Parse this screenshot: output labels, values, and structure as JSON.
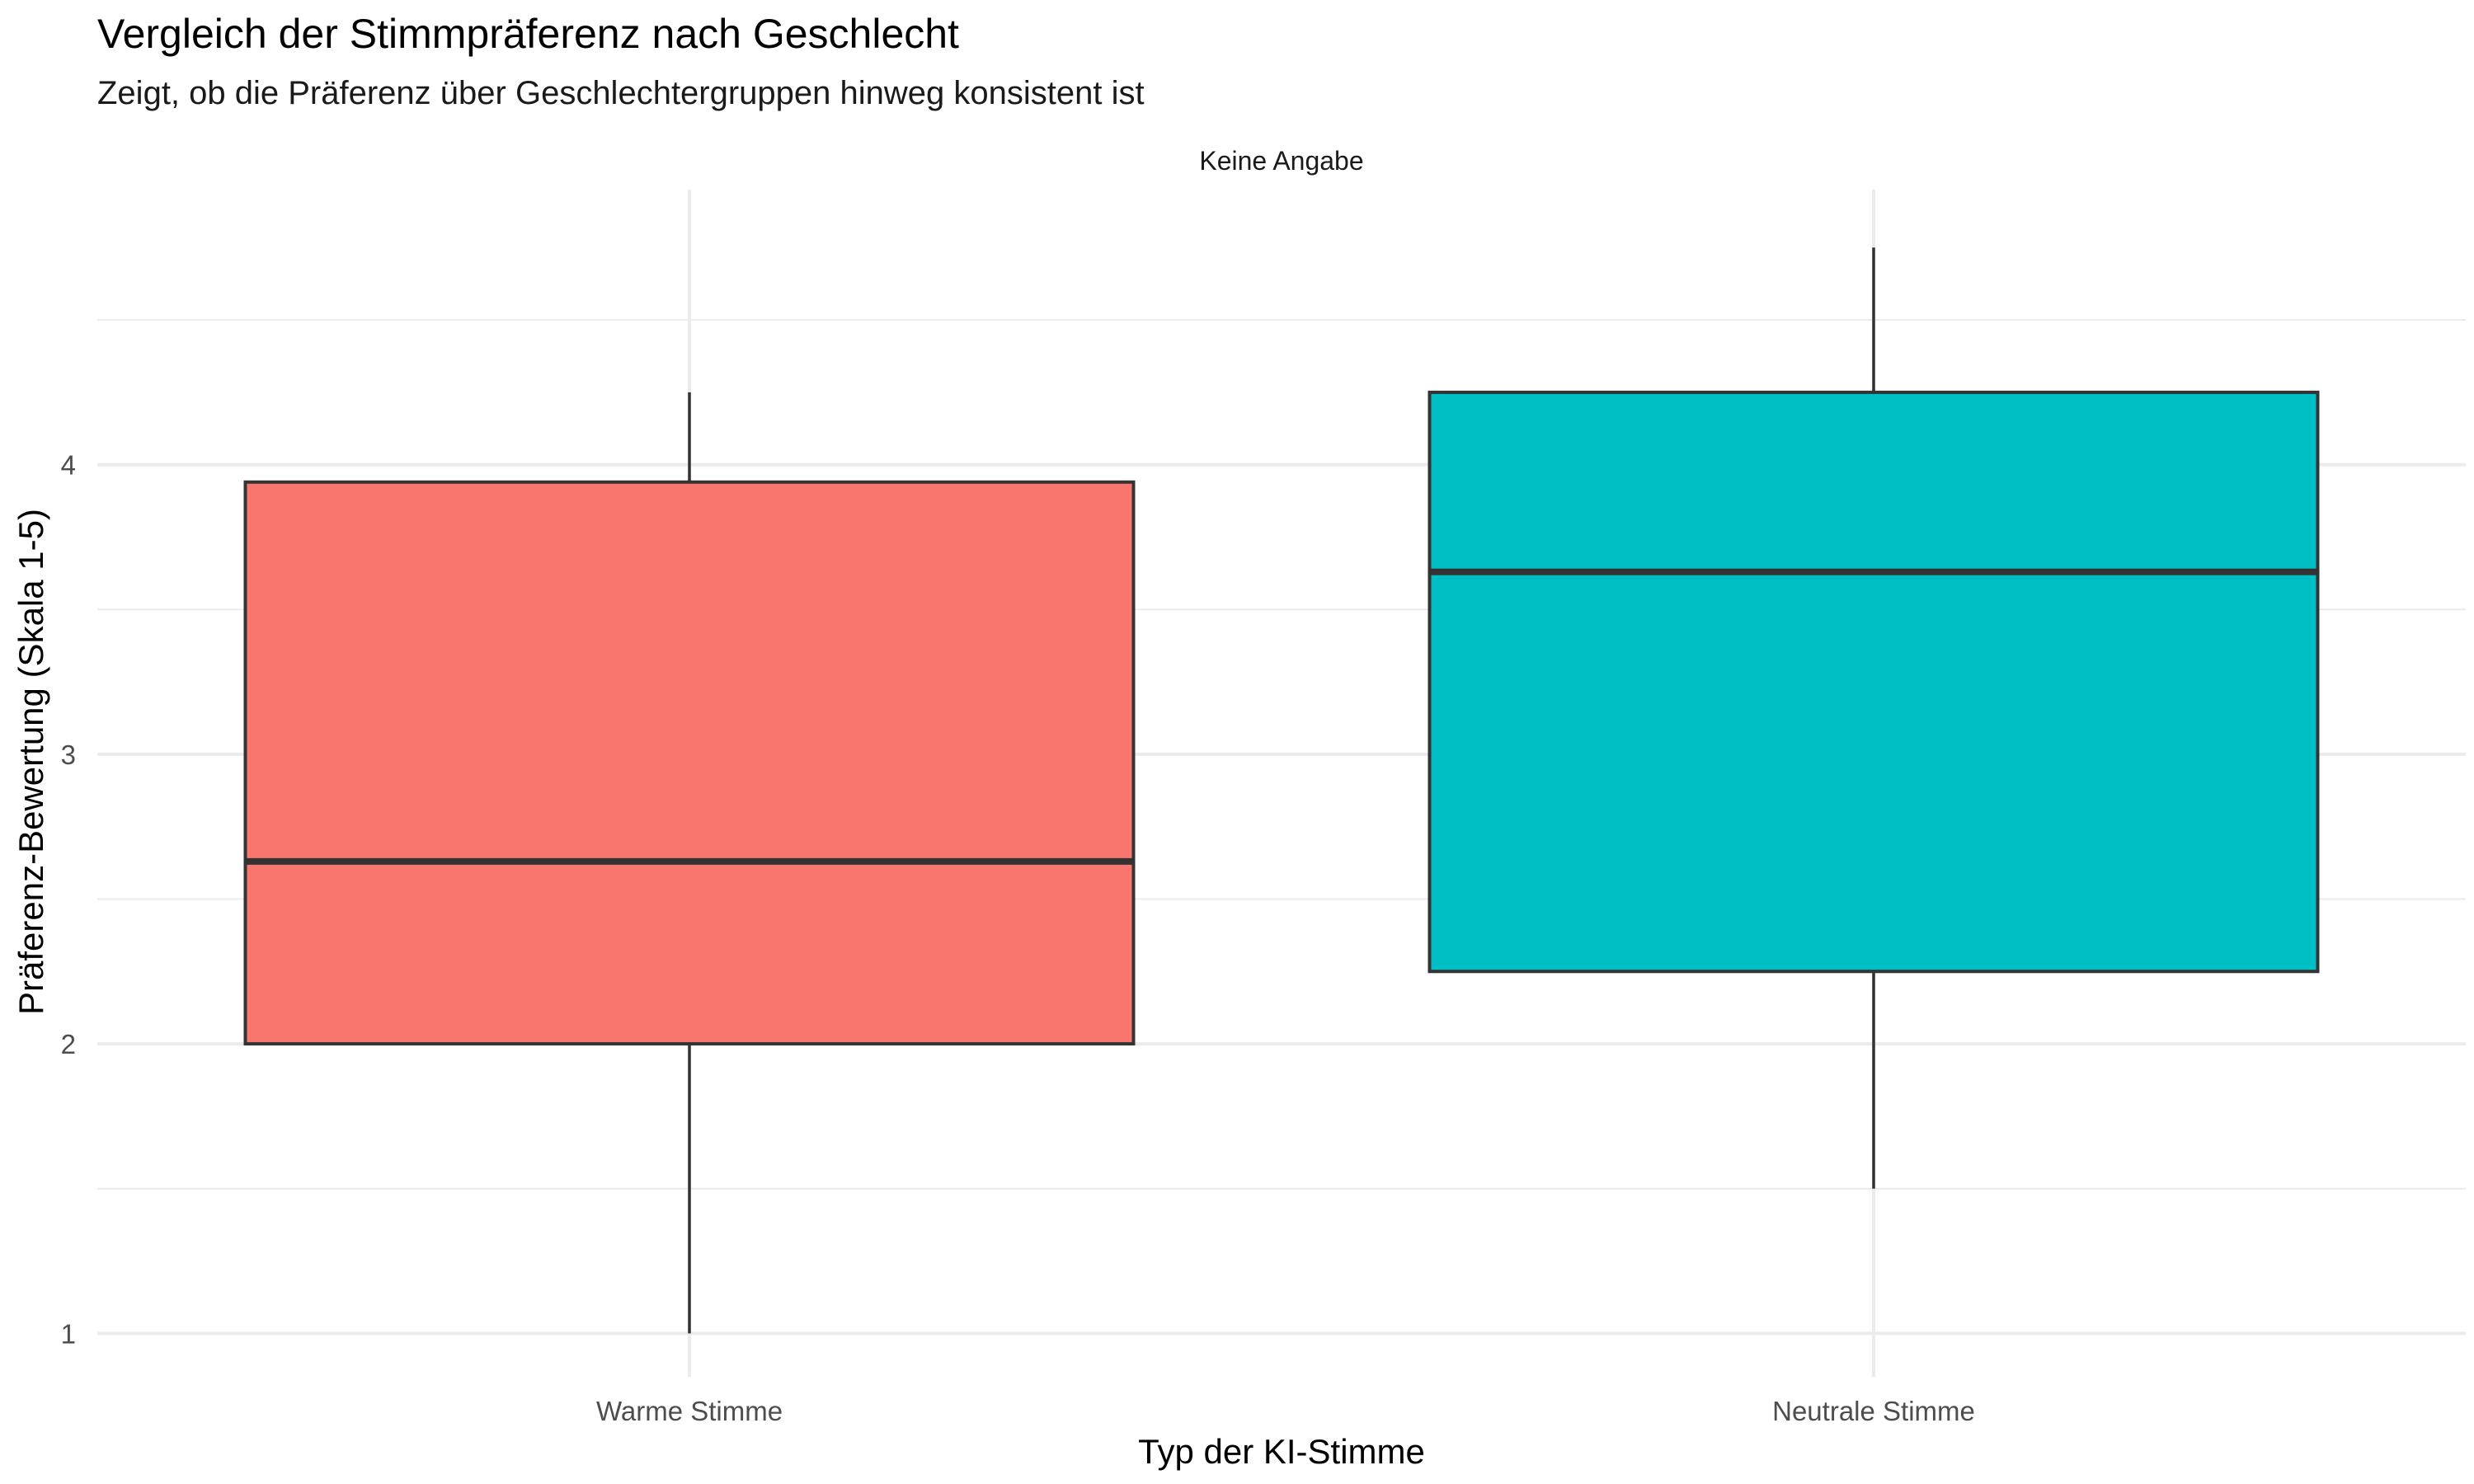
{
  "chart_data": {
    "type": "boxplot",
    "title": "Vergleich der Stimmpräferenz nach Geschlecht",
    "subtitle": "Zeigt, ob die Präferenz über Geschlechtergruppen hinweg konsistent ist",
    "facet_label": "Keine Angabe",
    "xlabel": "Typ der KI-Stimme",
    "ylabel": "Präferenz-Bewertung (Skala 1-5)",
    "ylim": [
      0.85,
      4.95
    ],
    "y_ticks": [
      1,
      2,
      3,
      4
    ],
    "y_tick_labels": [
      "1",
      "2",
      "3",
      "4"
    ],
    "grid": true,
    "legend": "none",
    "categories": [
      "Warme Stimme",
      "Neutrale Stimme"
    ],
    "boxes": [
      {
        "category": "Warme Stimme",
        "min": 1.0,
        "q1": 2.0,
        "median": 2.63,
        "q3": 3.94,
        "max": 4.25,
        "color": "#F8766D"
      },
      {
        "category": "Neutrale Stimme",
        "min": 1.5,
        "q1": 2.25,
        "median": 3.63,
        "q3": 4.25,
        "max": 4.75,
        "color": "#00BFC4"
      }
    ]
  }
}
